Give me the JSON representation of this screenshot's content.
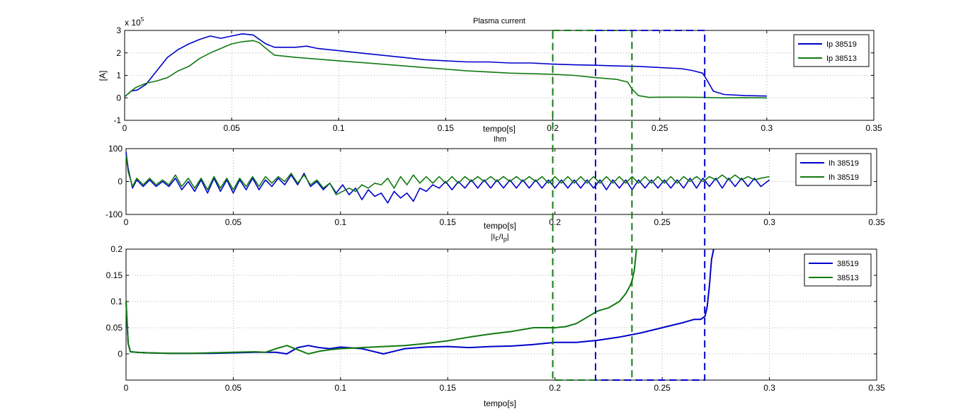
{
  "colors": {
    "blue": "#0000cc",
    "green": "#117a11",
    "grid": "#b0b0b0",
    "axes": "#000000"
  },
  "chart_data": [
    {
      "type": "line",
      "title": "Plasma current",
      "xlabel": "tempo[s]",
      "ylabel": "[A]",
      "y_exponent_label": "x 10",
      "y_exponent_power": "5",
      "xlim": [
        0,
        0.35
      ],
      "ylim": [
        -1,
        3
      ],
      "xticks": [
        "0",
        "0.05",
        "0.1",
        "0.15",
        "0.2",
        "0.25",
        "0.3",
        "0.35"
      ],
      "yticks": [
        "-1",
        "0",
        "1",
        "2",
        "3"
      ],
      "grid": true,
      "legend_position": "top-right",
      "legend": [
        "Ip 38519",
        "Ip 38513"
      ],
      "series": [
        {
          "name": "Ip 38519",
          "color": "blue",
          "x": [
            0,
            0.003,
            0.006,
            0.01,
            0.015,
            0.02,
            0.025,
            0.03,
            0.035,
            0.04,
            0.045,
            0.05,
            0.055,
            0.06,
            0.063,
            0.066,
            0.07,
            0.075,
            0.08,
            0.085,
            0.09,
            0.1,
            0.11,
            0.12,
            0.13,
            0.14,
            0.15,
            0.16,
            0.17,
            0.18,
            0.19,
            0.2,
            0.21,
            0.22,
            0.23,
            0.24,
            0.25,
            0.26,
            0.265,
            0.27,
            0.272,
            0.275,
            0.28,
            0.29,
            0.3
          ],
          "y": [
            0.05,
            0.3,
            0.35,
            0.6,
            1.2,
            1.8,
            2.15,
            2.4,
            2.6,
            2.75,
            2.65,
            2.75,
            2.85,
            2.8,
            2.6,
            2.4,
            2.25,
            2.25,
            2.25,
            2.3,
            2.2,
            2.1,
            2.0,
            1.9,
            1.8,
            1.7,
            1.65,
            1.6,
            1.6,
            1.55,
            1.55,
            1.5,
            1.47,
            1.45,
            1.42,
            1.4,
            1.35,
            1.3,
            1.22,
            1.1,
            0.8,
            0.3,
            0.15,
            0.1,
            0.08
          ]
        },
        {
          "name": "Ip 38513",
          "color": "green",
          "x": [
            0,
            0.005,
            0.01,
            0.015,
            0.02,
            0.025,
            0.03,
            0.035,
            0.04,
            0.045,
            0.05,
            0.055,
            0.06,
            0.063,
            0.066,
            0.07,
            0.08,
            0.1,
            0.12,
            0.14,
            0.16,
            0.18,
            0.2,
            0.21,
            0.22,
            0.23,
            0.235,
            0.237,
            0.24,
            0.245,
            0.25,
            0.26,
            0.27,
            0.28,
            0.29,
            0.3
          ],
          "y": [
            0.05,
            0.45,
            0.65,
            0.75,
            0.9,
            1.2,
            1.4,
            1.75,
            2.0,
            2.2,
            2.4,
            2.5,
            2.55,
            2.45,
            2.2,
            1.9,
            1.8,
            1.65,
            1.5,
            1.35,
            1.2,
            1.1,
            1.05,
            1.0,
            0.9,
            0.82,
            0.7,
            0.4,
            0.1,
            0.02,
            0.03,
            0.03,
            0.02,
            0.0,
            0.01,
            0.0
          ]
        }
      ]
    },
    {
      "type": "line",
      "title": "Ihm",
      "xlabel": "tempo[s]",
      "ylabel": "",
      "xlim": [
        0,
        0.35
      ],
      "ylim": [
        -100,
        100
      ],
      "xticks": [
        "0",
        "0.05",
        "0.1",
        "0.15",
        "0.2",
        "0.25",
        "0.3",
        "0.35"
      ],
      "yticks": [
        "-100",
        "0",
        "100"
      ],
      "grid": true,
      "legend_position": "top-right",
      "legend": [
        "Ih 38519",
        "Ih 38519"
      ],
      "series": [
        {
          "name": "Ih 38519",
          "color": "blue",
          "x": [
            0,
            0.001,
            0.003,
            0.005,
            0.008,
            0.011,
            0.014,
            0.017,
            0.02,
            0.023,
            0.026,
            0.029,
            0.032,
            0.035,
            0.038,
            0.041,
            0.044,
            0.047,
            0.05,
            0.053,
            0.056,
            0.059,
            0.062,
            0.065,
            0.068,
            0.071,
            0.074,
            0.077,
            0.08,
            0.083,
            0.086,
            0.089,
            0.092,
            0.095,
            0.098,
            0.101,
            0.104,
            0.107,
            0.11,
            0.113,
            0.116,
            0.119,
            0.122,
            0.125,
            0.128,
            0.131,
            0.134,
            0.137,
            0.14,
            0.143,
            0.146,
            0.149,
            0.152,
            0.155,
            0.158,
            0.161,
            0.164,
            0.167,
            0.17,
            0.173,
            0.176,
            0.179,
            0.182,
            0.185,
            0.188,
            0.191,
            0.194,
            0.197,
            0.2,
            0.203,
            0.206,
            0.209,
            0.212,
            0.215,
            0.218,
            0.221,
            0.224,
            0.227,
            0.23,
            0.233,
            0.236,
            0.239,
            0.242,
            0.245,
            0.248,
            0.251,
            0.254,
            0.257,
            0.26,
            0.263,
            0.266,
            0.269,
            0.272,
            0.275,
            0.278,
            0.281,
            0.284,
            0.287,
            0.29,
            0.293,
            0.296,
            0.3
          ],
          "y": [
            90,
            40,
            -20,
            5,
            -15,
            5,
            -15,
            0,
            -15,
            10,
            -25,
            0,
            -30,
            5,
            -35,
            10,
            -30,
            5,
            -35,
            5,
            -25,
            10,
            -25,
            5,
            -15,
            10,
            -10,
            20,
            -10,
            25,
            -15,
            0,
            -25,
            -5,
            -35,
            -10,
            -40,
            -20,
            -55,
            -25,
            -45,
            -35,
            -65,
            -30,
            -50,
            -35,
            -60,
            -20,
            -30,
            -10,
            -20,
            0,
            -25,
            0,
            -20,
            5,
            -20,
            5,
            -20,
            5,
            -20,
            5,
            -20,
            5,
            -20,
            5,
            -20,
            5,
            -20,
            5,
            -20,
            5,
            -20,
            5,
            -20,
            5,
            -25,
            5,
            -20,
            5,
            -25,
            5,
            -20,
            5,
            -20,
            5,
            -20,
            5,
            -20,
            10,
            -20,
            10,
            -15,
            10,
            -20,
            10,
            -15,
            10,
            -15,
            10,
            -15,
            5
          ]
        },
        {
          "name": "Ih 38519",
          "color": "green",
          "x": [
            0,
            0.001,
            0.003,
            0.005,
            0.008,
            0.011,
            0.014,
            0.017,
            0.02,
            0.023,
            0.026,
            0.029,
            0.032,
            0.035,
            0.038,
            0.041,
            0.044,
            0.047,
            0.05,
            0.053,
            0.056,
            0.059,
            0.062,
            0.065,
            0.068,
            0.071,
            0.074,
            0.077,
            0.08,
            0.083,
            0.086,
            0.089,
            0.092,
            0.095,
            0.098,
            0.101,
            0.104,
            0.107,
            0.11,
            0.113,
            0.116,
            0.119,
            0.122,
            0.125,
            0.128,
            0.131,
            0.134,
            0.137,
            0.14,
            0.143,
            0.146,
            0.149,
            0.152,
            0.155,
            0.158,
            0.161,
            0.164,
            0.167,
            0.17,
            0.173,
            0.176,
            0.179,
            0.182,
            0.185,
            0.188,
            0.191,
            0.194,
            0.197,
            0.2,
            0.203,
            0.206,
            0.209,
            0.212,
            0.215,
            0.218,
            0.221,
            0.224,
            0.227,
            0.23,
            0.233,
            0.236,
            0.239,
            0.242,
            0.245,
            0.248,
            0.251,
            0.254,
            0.257,
            0.26,
            0.263,
            0.266,
            0.269,
            0.272,
            0.275,
            0.278,
            0.281,
            0.284,
            0.287,
            0.29,
            0.293,
            0.296,
            0.3
          ],
          "y": [
            80,
            30,
            -15,
            10,
            -10,
            10,
            -10,
            5,
            -10,
            20,
            -15,
            10,
            -20,
            10,
            -25,
            15,
            -20,
            10,
            -25,
            10,
            -15,
            15,
            -15,
            15,
            -5,
            15,
            0,
            25,
            -5,
            20,
            -10,
            5,
            -20,
            -5,
            -40,
            -30,
            -20,
            -30,
            -10,
            -20,
            -5,
            -10,
            10,
            -20,
            15,
            -10,
            20,
            -5,
            15,
            -5,
            15,
            -5,
            15,
            -5,
            15,
            0,
            15,
            0,
            15,
            0,
            15,
            0,
            15,
            0,
            15,
            0,
            15,
            -5,
            15,
            -5,
            15,
            -5,
            15,
            -5,
            15,
            -5,
            15,
            -5,
            15,
            -5,
            15,
            -5,
            15,
            -5,
            15,
            -5,
            15,
            -5,
            15,
            0,
            15,
            0,
            15,
            5,
            20,
            5,
            20,
            5,
            15,
            5,
            10,
            15
          ]
        }
      ]
    },
    {
      "type": "line",
      "title": "|I",
      "title_sub1": "F",
      "title_mid": "/I",
      "title_sub2": "p",
      "title_end": "|",
      "xlabel": "tempo[s]",
      "ylabel": "",
      "xlim": [
        0,
        0.35
      ],
      "ylim": [
        -0.05,
        0.2
      ],
      "xticks": [
        "0",
        "0.05",
        "0.1",
        "0.15",
        "0.2",
        "0.25",
        "0.3",
        "0.35"
      ],
      "yticks": [
        "0",
        "0.05",
        "0.1",
        "0.15",
        "0.2"
      ],
      "ytick_values": [
        0,
        0.05,
        0.1,
        0.15,
        0.2
      ],
      "grid": true,
      "legend_position": "top-right",
      "legend": [
        "38519",
        "38513"
      ],
      "series": [
        {
          "name": "38519",
          "color": "blue",
          "x": [
            0,
            0.001,
            0.002,
            0.005,
            0.01,
            0.02,
            0.03,
            0.04,
            0.05,
            0.06,
            0.07,
            0.075,
            0.08,
            0.085,
            0.09,
            0.095,
            0.1,
            0.11,
            0.115,
            0.12,
            0.125,
            0.13,
            0.14,
            0.15,
            0.16,
            0.17,
            0.18,
            0.19,
            0.2,
            0.21,
            0.22,
            0.23,
            0.24,
            0.25,
            0.26,
            0.265,
            0.268,
            0.27,
            0.271,
            0.272,
            0.273,
            0.274
          ],
          "y": [
            0.1,
            0.02,
            0.004,
            0.003,
            0.002,
            0.001,
            0.001,
            0.001,
            0.002,
            0.003,
            0.003,
            0.0,
            0.012,
            0.016,
            0.012,
            0.01,
            0.013,
            0.01,
            0.005,
            0.0,
            0.005,
            0.01,
            0.013,
            0.014,
            0.012,
            0.014,
            0.015,
            0.018,
            0.022,
            0.022,
            0.026,
            0.032,
            0.04,
            0.05,
            0.06,
            0.066,
            0.066,
            0.072,
            0.09,
            0.13,
            0.18,
            0.2
          ]
        },
        {
          "name": "38513",
          "color": "green",
          "x": [
            0,
            0.001,
            0.002,
            0.005,
            0.01,
            0.02,
            0.03,
            0.04,
            0.05,
            0.06,
            0.065,
            0.07,
            0.075,
            0.08,
            0.085,
            0.09,
            0.095,
            0.1,
            0.11,
            0.12,
            0.13,
            0.14,
            0.15,
            0.16,
            0.17,
            0.18,
            0.19,
            0.2,
            0.205,
            0.21,
            0.215,
            0.22,
            0.225,
            0.23,
            0.233,
            0.235,
            0.236,
            0.237,
            0.238
          ],
          "y": [
            0.1,
            0.02,
            0.004,
            0.003,
            0.002,
            0.001,
            0.001,
            0.002,
            0.003,
            0.004,
            0.003,
            0.01,
            0.016,
            0.008,
            0.0,
            0.005,
            0.008,
            0.01,
            0.012,
            0.014,
            0.016,
            0.02,
            0.025,
            0.032,
            0.038,
            0.043,
            0.05,
            0.05,
            0.052,
            0.058,
            0.07,
            0.082,
            0.088,
            0.1,
            0.115,
            0.13,
            0.14,
            0.16,
            0.2
          ]
        }
      ]
    }
  ],
  "windows": [
    {
      "color": "green",
      "x0": 0.2,
      "x1": 0.237
    },
    {
      "color": "blue",
      "x0": 0.22,
      "x1": 0.271
    }
  ]
}
